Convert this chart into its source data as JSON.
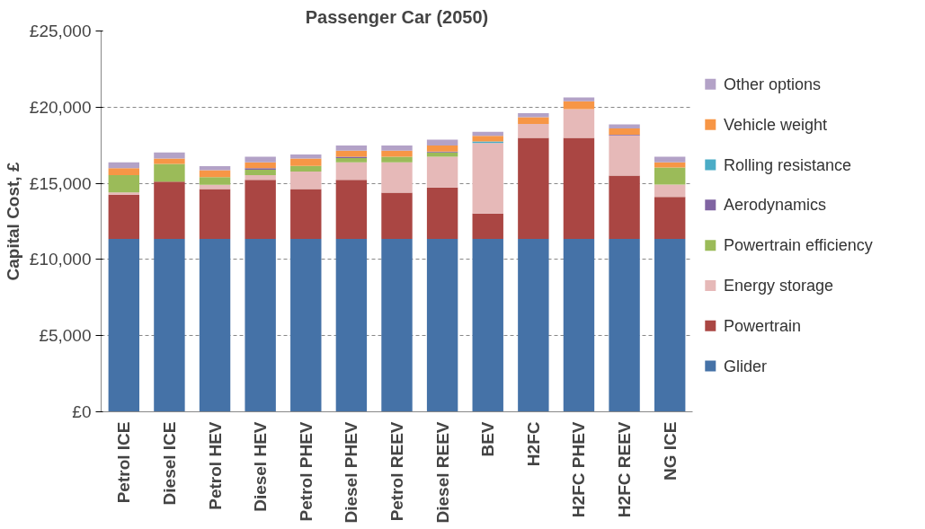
{
  "chart_data": {
    "type": "bar",
    "stacked": true,
    "title": "Passenger Car (2050)",
    "ylabel": "Capital Cost, £",
    "categories": [
      "Petrol ICE",
      "Diesel ICE",
      "Petrol HEV",
      "Diesel HEV",
      "Petrol PHEV",
      "Diesel PHEV",
      "Petrol REEV",
      "Diesel REEV",
      "BEV",
      "H2FC",
      "H2FC PHEV",
      "H2FC REEV",
      "NG ICE"
    ],
    "series": [
      {
        "name": "Glider",
        "color": "#4572a7",
        "values": [
          11350,
          11350,
          11350,
          11350,
          11350,
          11350,
          11350,
          11350,
          11350,
          11350,
          11350,
          11350,
          11350
        ]
      },
      {
        "name": "Powertrain",
        "color": "#aa4643",
        "values": [
          2910,
          3760,
          3270,
          3880,
          3270,
          3880,
          3030,
          3370,
          1660,
          6640,
          6640,
          4150,
          2760
        ]
      },
      {
        "name": "Energy storage",
        "color": "#e6b9b8",
        "values": [
          140,
          0,
          290,
          300,
          1150,
          1150,
          2000,
          2030,
          4640,
          910,
          1880,
          2640,
          810
        ]
      },
      {
        "name": "Powertrain efficiency",
        "color": "#9bbb59",
        "values": [
          1130,
          1170,
          490,
          360,
          370,
          270,
          370,
          270,
          0,
          0,
          0,
          0,
          1120
        ]
      },
      {
        "name": "Aerodynamics",
        "color": "#8064a2",
        "values": [
          0,
          0,
          0,
          100,
          0,
          100,
          0,
          70,
          0,
          0,
          0,
          50,
          0
        ]
      },
      {
        "name": "Rolling resistance",
        "color": "#4bacc6",
        "values": [
          0,
          0,
          0,
          0,
          0,
          0,
          0,
          0,
          100,
          0,
          0,
          0,
          0
        ]
      },
      {
        "name": "Vehicle weight",
        "color": "#f79646",
        "values": [
          460,
          350,
          460,
          390,
          490,
          390,
          390,
          390,
          360,
          440,
          520,
          410,
          340
        ]
      },
      {
        "name": "Other options",
        "color": "#b3a2c7",
        "values": [
          390,
          390,
          270,
          370,
          260,
          340,
          340,
          390,
          270,
          260,
          240,
          270,
          370
        ]
      }
    ],
    "ylim": [
      0,
      25000
    ],
    "yticks": [
      {
        "value": 0,
        "label": "£0"
      },
      {
        "value": 5000,
        "label": "£5,000"
      },
      {
        "value": 10000,
        "label": "£10,000"
      },
      {
        "value": 15000,
        "label": "£15,000"
      },
      {
        "value": 20000,
        "label": "£20,000"
      },
      {
        "value": 25000,
        "label": "£25,000"
      }
    ],
    "grid": "y",
    "legend": "right"
  }
}
